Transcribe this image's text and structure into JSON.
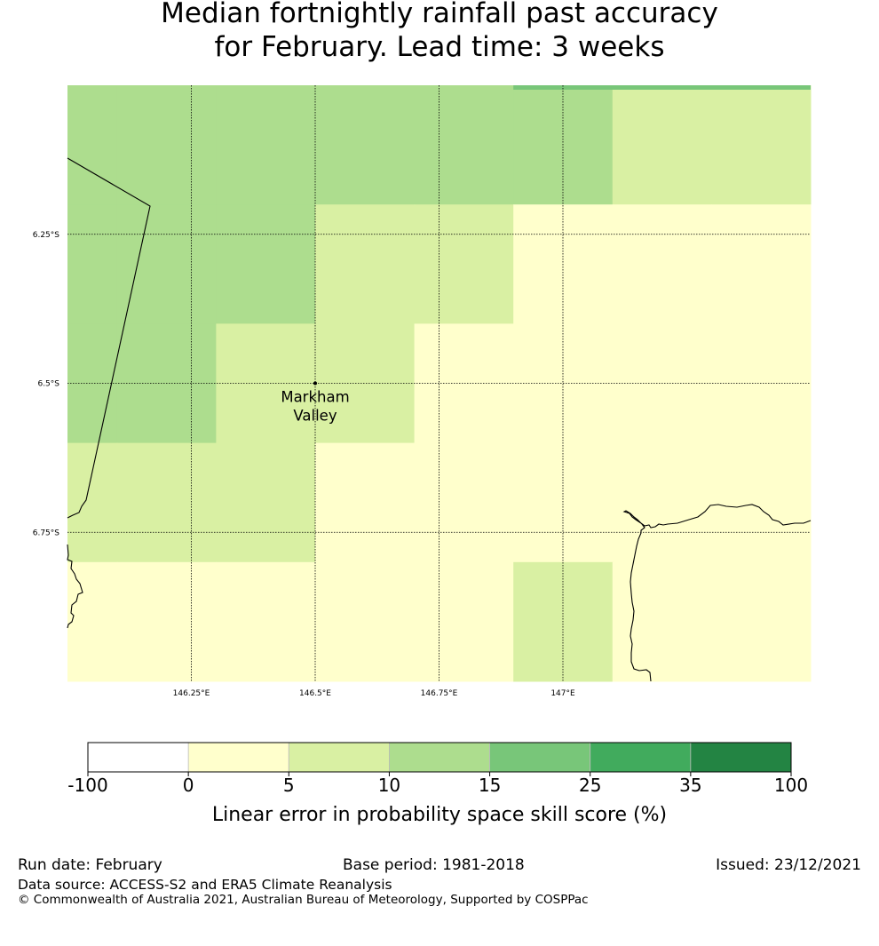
{
  "title_line1": "Median fortnightly rainfall past accuracy",
  "title_line2": "for February. Lead time: 3 weeks",
  "map": {
    "extent": {
      "lon": [
        146.0,
        147.5
      ],
      "lat": [
        6.0,
        7.0
      ]
    },
    "lon_ticks": [
      {
        "value": 146.25,
        "label": "146.25°E"
      },
      {
        "value": 146.5,
        "label": "146.5°E"
      },
      {
        "value": 146.75,
        "label": "146.75°E"
      },
      {
        "value": 147.0,
        "label": "147°E"
      }
    ],
    "lat_ticks": [
      {
        "value": 6.25,
        "label": "6.25°S"
      },
      {
        "value": 6.5,
        "label": "6.5°S"
      },
      {
        "value": 6.75,
        "label": "6.75°S"
      }
    ],
    "cell_lon_edges": [
      146.0,
      146.1,
      146.3,
      146.5,
      146.7,
      146.9,
      147.1,
      147.3,
      147.5
    ],
    "cell_lat_edges": [
      6.0,
      6.2,
      6.4,
      6.6,
      6.8,
      7.0
    ],
    "cell_classes": [
      [
        2,
        2,
        2,
        2,
        2,
        2,
        1,
        1
      ],
      [
        2,
        2,
        2,
        1,
        1,
        0,
        0,
        0
      ],
      [
        2,
        2,
        1,
        1,
        0,
        0,
        0,
        0
      ],
      [
        1,
        1,
        1,
        0,
        0,
        0,
        0,
        0
      ],
      [
        0,
        0,
        0,
        0,
        0,
        1,
        0,
        0
      ]
    ],
    "top_strip": {
      "lon": [
        146.9,
        147.5
      ],
      "lat": [
        5.99,
        6.0
      ],
      "class": 3
    },
    "place": {
      "name_line1": "Markham",
      "name_line2": "Valley",
      "lon": 146.5,
      "lat": 6.5
    }
  },
  "colorbar": {
    "bounds": [
      "-100",
      "0",
      "5",
      "10",
      "15",
      "25",
      "35",
      "100"
    ],
    "colors": [
      "#ffffff",
      "#ffffcc",
      "#d9f0a3",
      "#addd8e",
      "#78c679",
      "#41ab5d",
      "#238443"
    ],
    "label": "Linear error in probability space skill score (%)"
  },
  "class_colors": [
    "#ffffcc",
    "#d9f0a3",
    "#addd8e",
    "#78c679"
  ],
  "footer": {
    "run_date": "Run date: February",
    "base_period": "Base period: 1981-2018",
    "issued": "Issued: 23/12/2021",
    "data_source": "Data source: ACCESS-S2 and ERA5 Climate Reanalysis",
    "copyright": "© Commonwealth of Australia 2021, Australian Bureau of Meteorology, Supported by COSPPac"
  }
}
